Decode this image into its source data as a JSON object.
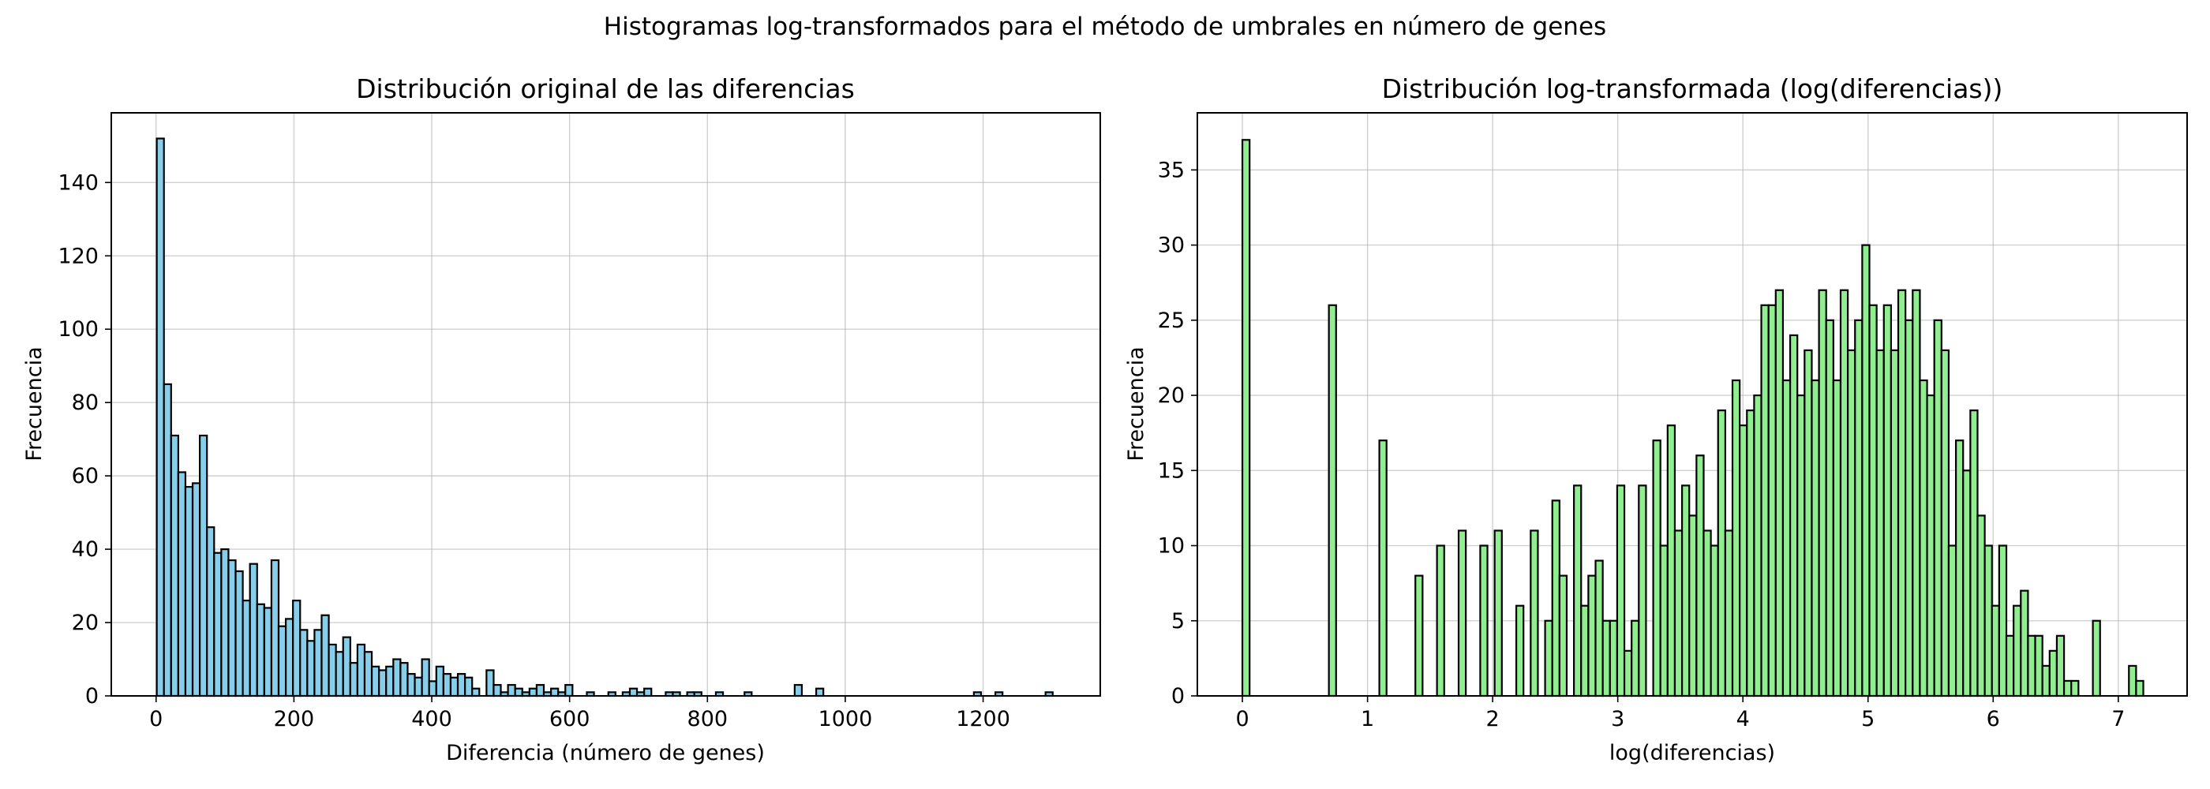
{
  "figure": {
    "suptitle": "Histogramas log-transformados para el método de umbrales en número de genes"
  },
  "chart_data": [
    {
      "type": "bar",
      "title": "Distribución original de las diferencias",
      "xlabel": "Diferencia (número de genes)",
      "ylabel": "Frecuencia",
      "xlim": [
        -65,
        1370
      ],
      "ylim": [
        0,
        159
      ],
      "xticks": [
        0,
        200,
        400,
        600,
        800,
        1000,
        1200
      ],
      "yticks": [
        0,
        20,
        40,
        60,
        80,
        100,
        120,
        140
      ],
      "grid": true,
      "bar_color": "#87ceeb",
      "edge_color": "#000000",
      "bin_start": 1,
      "bin_width": 10.4,
      "values": [
        152,
        85,
        71,
        61,
        57,
        58,
        71,
        46,
        39,
        40,
        37,
        34,
        26,
        36,
        25,
        24,
        37,
        19,
        21,
        26,
        18,
        15,
        18,
        22,
        14,
        12,
        16,
        9,
        14,
        12,
        8,
        7,
        8,
        10,
        9,
        6,
        5,
        10,
        4,
        8,
        6,
        5,
        6,
        5,
        2,
        0,
        7,
        3,
        1,
        3,
        2,
        1,
        2,
        3,
        1,
        2,
        1,
        3,
        0,
        0,
        1,
        0,
        0,
        1,
        0,
        1,
        2,
        1,
        2,
        0,
        0,
        1,
        1,
        0,
        1,
        1,
        0,
        0,
        1,
        0,
        0,
        0,
        1,
        0,
        0,
        0,
        0,
        0,
        0,
        3,
        0,
        0,
        2,
        0,
        0,
        0,
        0,
        0,
        0,
        0,
        0,
        0,
        0,
        0,
        0,
        0,
        0,
        0,
        0,
        0,
        0,
        0,
        0,
        0,
        1,
        0,
        0,
        1,
        0,
        0,
        0,
        0,
        0,
        0,
        1
      ]
    },
    {
      "type": "bar",
      "title": "Distribución log-transformada (log(diferencias))",
      "xlabel": "log(diferencias)",
      "ylabel": "Frecuencia",
      "xlim": [
        -0.36,
        7.55
      ],
      "ylim": [
        0,
        38.8
      ],
      "xticks": [
        0,
        1,
        2,
        3,
        4,
        5,
        6,
        7
      ],
      "yticks": [
        0,
        5,
        10,
        15,
        20,
        25,
        30,
        35
      ],
      "grid": true,
      "bar_color": "#90ee90",
      "edge_color": "#000000",
      "bin_start": 0,
      "bin_width": 0.0576,
      "values": [
        37,
        0,
        0,
        0,
        0,
        0,
        0,
        0,
        0,
        0,
        0,
        0,
        26,
        0,
        0,
        0,
        0,
        0,
        0,
        17,
        0,
        0,
        0,
        0,
        8,
        0,
        0,
        10,
        0,
        0,
        11,
        0,
        0,
        10,
        0,
        11,
        0,
        0,
        6,
        0,
        11,
        0,
        5,
        13,
        8,
        0,
        14,
        6,
        8,
        9,
        5,
        5,
        14,
        3,
        5,
        14,
        0,
        17,
        10,
        18,
        11,
        14,
        12,
        16,
        11,
        10,
        19,
        11,
        21,
        18,
        19,
        20,
        26,
        26,
        27,
        21,
        24,
        20,
        23,
        21,
        27,
        25,
        21,
        27,
        23,
        25,
        30,
        26,
        23,
        26,
        23,
        27,
        25,
        27,
        21,
        20,
        25,
        23,
        10,
        17,
        15,
        19,
        12,
        10,
        6,
        10,
        4,
        6,
        7,
        4,
        4,
        2,
        3,
        4,
        1,
        1,
        0,
        0,
        5,
        0,
        0,
        0,
        0,
        2,
        1
      ]
    }
  ]
}
